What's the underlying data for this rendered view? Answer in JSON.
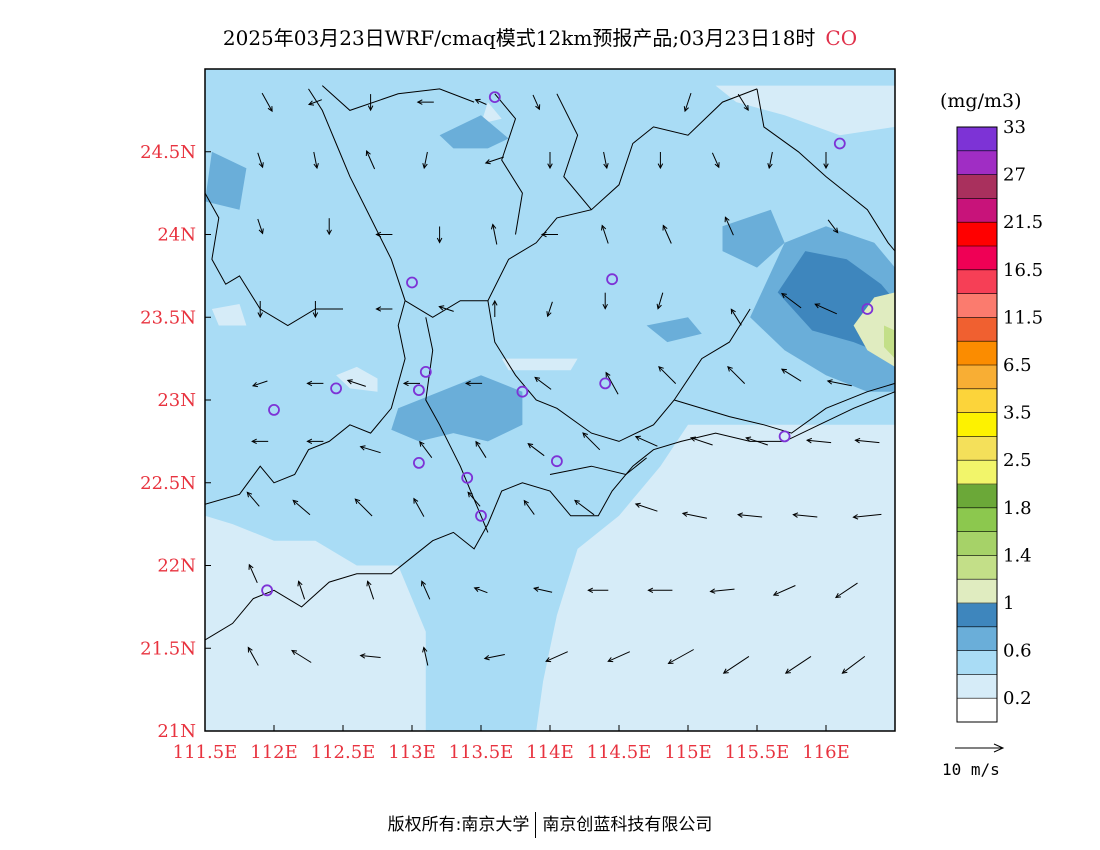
{
  "title": {
    "text": "2025年03月23日WRF/cmaq模式12km预报产品;03月23日18时",
    "species": "CO"
  },
  "colorbar": {
    "units": "(mg/m3)",
    "colors": [
      "#ffffff",
      "#d6ecf8",
      "#a9dcf5",
      "#6aaed9",
      "#3e86bd",
      "#e0ecc0",
      "#c3df88",
      "#a6d268",
      "#8cc84e",
      "#6ba838",
      "#f2f56a",
      "#f4e05a",
      "#fdf200",
      "#fcd43a",
      "#f8ae34",
      "#fb8c00",
      "#f06030",
      "#fb7b6e",
      "#f63f56",
      "#ef0055",
      "#ff0000",
      "#c8137a",
      "#a9305d",
      "#a02dc4",
      "#7d33d6"
    ],
    "labels": [
      {
        "text": "0.2",
        "boundary": 1
      },
      {
        "text": "0.6",
        "boundary": 3
      },
      {
        "text": "1",
        "boundary": 5
      },
      {
        "text": "1.4",
        "boundary": 7
      },
      {
        "text": "1.8",
        "boundary": 9
      },
      {
        "text": "2.5",
        "boundary": 11
      },
      {
        "text": "3.5",
        "boundary": 13
      },
      {
        "text": "6.5",
        "boundary": 15
      },
      {
        "text": "11.5",
        "boundary": 17
      },
      {
        "text": "16.5",
        "boundary": 19
      },
      {
        "text": "21.5",
        "boundary": 21
      },
      {
        "text": "27",
        "boundary": 23
      },
      {
        "text": "33",
        "boundary": 25
      }
    ]
  },
  "wind_reference": {
    "label": "10 m/s"
  },
  "footer": {
    "left": "版权所有:南京大学",
    "right": "南京创蓝科技有限公司"
  },
  "chart_data": {
    "type": "heatmap",
    "title": "2025年03月23日WRF/cmaq模式12km预报产品;03月23日18时 CO",
    "variable": "CO",
    "units": "mg/m3",
    "x_range": [
      111.5,
      116.5
    ],
    "y_range": [
      21.0,
      25.0
    ],
    "x_ticks": [
      {
        "value": 111.5,
        "label": "111.5E"
      },
      {
        "value": 112.0,
        "label": "112E"
      },
      {
        "value": 112.5,
        "label": "112.5E"
      },
      {
        "value": 113.0,
        "label": "113E"
      },
      {
        "value": 113.5,
        "label": "113.5E"
      },
      {
        "value": 114.0,
        "label": "114E"
      },
      {
        "value": 114.5,
        "label": "114.5E"
      },
      {
        "value": 115.0,
        "label": "115E"
      },
      {
        "value": 115.5,
        "label": "115.5E"
      },
      {
        "value": 116.0,
        "label": "116E"
      }
    ],
    "y_ticks": [
      {
        "value": 21.0,
        "label": "21N"
      },
      {
        "value": 21.5,
        "label": "21.5N"
      },
      {
        "value": 22.0,
        "label": "22N"
      },
      {
        "value": 22.5,
        "label": "22.5N"
      },
      {
        "value": 23.0,
        "label": "23N"
      },
      {
        "value": 23.5,
        "label": "23.5N"
      },
      {
        "value": 24.0,
        "label": "24N"
      },
      {
        "value": 24.5,
        "label": "24.5N"
      }
    ],
    "background_level": 2,
    "regions": [
      {
        "level": 1,
        "points": [
          [
            114.8,
            21.0
          ],
          [
            116.5,
            21.0
          ],
          [
            116.5,
            22.85
          ],
          [
            115.5,
            22.85
          ],
          [
            115.0,
            22.85
          ],
          [
            114.8,
            22.6
          ],
          [
            114.5,
            22.3
          ],
          [
            114.2,
            22.1
          ],
          [
            114.05,
            21.7
          ],
          [
            113.95,
            21.3
          ],
          [
            113.9,
            21.0
          ]
        ]
      },
      {
        "level": 1,
        "points": [
          [
            111.5,
            21.0
          ],
          [
            113.1,
            21.0
          ],
          [
            113.1,
            21.6
          ],
          [
            112.9,
            22.0
          ],
          [
            112.6,
            22.0
          ],
          [
            112.3,
            22.15
          ],
          [
            112.0,
            22.15
          ],
          [
            111.7,
            22.25
          ],
          [
            111.5,
            22.3
          ]
        ]
      },
      {
        "level": 1,
        "points": [
          [
            115.2,
            24.9
          ],
          [
            116.5,
            24.9
          ],
          [
            116.5,
            24.65
          ],
          [
            116.1,
            24.6
          ],
          [
            115.7,
            24.72
          ],
          [
            115.35,
            24.8
          ]
        ]
      },
      {
        "level": 1,
        "points": [
          [
            112.6,
            23.2
          ],
          [
            112.75,
            23.13
          ],
          [
            112.75,
            23.05
          ],
          [
            112.55,
            23.07
          ],
          [
            112.45,
            23.15
          ]
        ]
      },
      {
        "level": 1,
        "points": [
          [
            111.55,
            23.55
          ],
          [
            111.75,
            23.58
          ],
          [
            111.8,
            23.45
          ],
          [
            111.6,
            23.45
          ]
        ]
      },
      {
        "level": 1,
        "points": [
          [
            113.65,
            23.25
          ],
          [
            114.2,
            23.25
          ],
          [
            114.15,
            23.18
          ],
          [
            113.7,
            23.18
          ]
        ]
      },
      {
        "level": 1,
        "points": [
          [
            113.55,
            24.8
          ],
          [
            113.65,
            24.7
          ],
          [
            113.5,
            24.67
          ]
        ]
      },
      {
        "level": 3,
        "points": [
          [
            112.9,
            22.95
          ],
          [
            113.2,
            23.05
          ],
          [
            113.5,
            23.15
          ],
          [
            113.8,
            23.05
          ],
          [
            113.8,
            22.85
          ],
          [
            113.55,
            22.75
          ],
          [
            113.3,
            22.8
          ],
          [
            113.05,
            22.75
          ],
          [
            112.85,
            22.82
          ]
        ]
      },
      {
        "level": 3,
        "points": [
          [
            115.45,
            23.5
          ],
          [
            115.7,
            23.95
          ],
          [
            116.0,
            24.05
          ],
          [
            116.35,
            23.95
          ],
          [
            116.5,
            23.8
          ],
          [
            116.5,
            23.05
          ],
          [
            116.3,
            23.05
          ],
          [
            116.0,
            23.15
          ],
          [
            115.7,
            23.3
          ]
        ]
      },
      {
        "level": 3,
        "points": [
          [
            115.25,
            24.05
          ],
          [
            115.6,
            24.15
          ],
          [
            115.7,
            23.95
          ],
          [
            115.5,
            23.8
          ],
          [
            115.25,
            23.9
          ]
        ]
      },
      {
        "level": 3,
        "points": [
          [
            113.2,
            24.6
          ],
          [
            113.5,
            24.72
          ],
          [
            113.7,
            24.58
          ],
          [
            113.55,
            24.52
          ],
          [
            113.3,
            24.52
          ]
        ]
      },
      {
        "level": 3,
        "points": [
          [
            111.5,
            24.2
          ],
          [
            111.75,
            24.15
          ],
          [
            111.8,
            24.4
          ],
          [
            111.55,
            24.5
          ]
        ]
      },
      {
        "level": 3,
        "points": [
          [
            114.7,
            23.45
          ],
          [
            115.0,
            23.5
          ],
          [
            115.1,
            23.4
          ],
          [
            114.85,
            23.35
          ]
        ]
      },
      {
        "level": 4,
        "points": [
          [
            115.65,
            23.65
          ],
          [
            115.85,
            23.9
          ],
          [
            116.15,
            23.85
          ],
          [
            116.4,
            23.7
          ],
          [
            116.5,
            23.6
          ],
          [
            116.5,
            23.25
          ],
          [
            116.2,
            23.35
          ],
          [
            115.9,
            23.42
          ]
        ]
      },
      {
        "level": 5,
        "points": [
          [
            116.35,
            23.62
          ],
          [
            116.5,
            23.65
          ],
          [
            116.5,
            23.2
          ],
          [
            116.3,
            23.3
          ],
          [
            116.2,
            23.45
          ]
        ]
      },
      {
        "level": 6,
        "points": [
          [
            116.42,
            23.45
          ],
          [
            116.5,
            23.42
          ],
          [
            116.5,
            23.25
          ],
          [
            116.42,
            23.32
          ]
        ]
      }
    ],
    "stations": [
      [
        113.6,
        24.83
      ],
      [
        116.1,
        24.55
      ],
      [
        113.0,
        23.71
      ],
      [
        114.45,
        23.73
      ],
      [
        116.3,
        23.55
      ],
      [
        113.1,
        23.17
      ],
      [
        112.45,
        23.07
      ],
      [
        113.05,
        23.06
      ],
      [
        113.8,
        23.05
      ],
      [
        114.4,
        23.1
      ],
      [
        112.0,
        22.94
      ],
      [
        113.05,
        22.62
      ],
      [
        113.4,
        22.53
      ],
      [
        114.05,
        22.63
      ],
      [
        115.7,
        22.78
      ],
      [
        113.5,
        22.3
      ],
      [
        111.95,
        21.85
      ]
    ],
    "wind_vectors": [
      [
        111.95,
        24.8,
        0.5,
        -0.9,
        0.5
      ],
      [
        112.3,
        24.8,
        -0.8,
        -0.3,
        0.4
      ],
      [
        112.7,
        24.8,
        0.0,
        -1.0,
        0.4
      ],
      [
        113.1,
        24.8,
        -1.0,
        0.0,
        0.4
      ],
      [
        113.5,
        24.8,
        -0.9,
        0.4,
        0.3
      ],
      [
        113.9,
        24.8,
        0.4,
        -0.9,
        0.4
      ],
      [
        115.0,
        24.8,
        -0.3,
        -0.9,
        0.5
      ],
      [
        115.4,
        24.8,
        0.5,
        -0.8,
        0.5
      ],
      [
        111.9,
        24.45,
        0.3,
        -0.9,
        0.4
      ],
      [
        112.3,
        24.45,
        0.2,
        -1.0,
        0.4
      ],
      [
        112.7,
        24.45,
        -0.4,
        0.9,
        0.5
      ],
      [
        113.1,
        24.45,
        -0.2,
        -1.0,
        0.4
      ],
      [
        113.6,
        24.45,
        -0.9,
        -0.3,
        0.5
      ],
      [
        114.0,
        24.45,
        0.0,
        -1.0,
        0.4
      ],
      [
        114.4,
        24.45,
        0.2,
        -1.0,
        0.4
      ],
      [
        114.8,
        24.45,
        0.0,
        -1.0,
        0.4
      ],
      [
        115.2,
        24.45,
        0.4,
        -0.9,
        0.4
      ],
      [
        115.6,
        24.45,
        -0.2,
        -1.0,
        0.4
      ],
      [
        116.0,
        24.45,
        0.0,
        -1.0,
        0.4
      ],
      [
        111.9,
        24.05,
        0.3,
        -0.9,
        0.4
      ],
      [
        112.4,
        24.05,
        0.0,
        -1.0,
        0.4
      ],
      [
        112.8,
        24.0,
        -1.0,
        0.0,
        0.4
      ],
      [
        113.2,
        24.0,
        0.0,
        -1.0,
        0.4
      ],
      [
        113.6,
        24.0,
        -0.2,
        1.0,
        0.5
      ],
      [
        114.0,
        24.0,
        -1.0,
        0.0,
        0.4
      ],
      [
        114.4,
        24.0,
        -0.3,
        0.9,
        0.5
      ],
      [
        114.85,
        24.0,
        -0.4,
        0.9,
        0.5
      ],
      [
        115.3,
        24.05,
        -0.4,
        0.9,
        0.5
      ],
      [
        116.05,
        24.05,
        0.6,
        -0.8,
        0.4
      ],
      [
        111.9,
        23.55,
        0.0,
        -1.0,
        0.4
      ],
      [
        112.3,
        23.55,
        0.0,
        -1.0,
        0.4
      ],
      [
        112.8,
        23.55,
        -1.0,
        0.0,
        0.4
      ],
      [
        113.25,
        23.55,
        -0.9,
        0.3,
        0.4
      ],
      [
        113.6,
        23.55,
        0.0,
        1.0,
        0.4
      ],
      [
        114.0,
        23.55,
        -0.3,
        -0.9,
        0.4
      ],
      [
        114.4,
        23.6,
        0.0,
        -1.0,
        0.4
      ],
      [
        114.8,
        23.6,
        -0.3,
        -1.0,
        0.4
      ],
      [
        115.35,
        23.5,
        -0.5,
        0.8,
        0.5
      ],
      [
        115.75,
        23.6,
        -0.8,
        0.6,
        0.6
      ],
      [
        116.0,
        23.55,
        -0.9,
        0.4,
        0.6
      ],
      [
        111.9,
        23.1,
        -0.9,
        -0.3,
        0.4
      ],
      [
        112.3,
        23.1,
        -1.0,
        0.0,
        0.4
      ],
      [
        112.6,
        23.1,
        -0.9,
        0.3,
        0.5
      ],
      [
        113.0,
        23.1,
        -1.0,
        0.0,
        0.4
      ],
      [
        113.45,
        23.1,
        -1.0,
        0.0,
        0.4
      ],
      [
        113.95,
        23.1,
        -0.8,
        0.6,
        0.5
      ],
      [
        114.45,
        23.1,
        -0.5,
        0.9,
        0.6
      ],
      [
        114.85,
        23.15,
        -0.7,
        0.7,
        0.6
      ],
      [
        115.35,
        23.15,
        -0.7,
        0.7,
        0.6
      ],
      [
        115.75,
        23.15,
        -0.8,
        0.5,
        0.6
      ],
      [
        116.1,
        23.1,
        -1.0,
        0.2,
        0.6
      ],
      [
        111.9,
        22.75,
        -1.0,
        0.0,
        0.4
      ],
      [
        112.3,
        22.75,
        -1.0,
        0.0,
        0.4
      ],
      [
        112.7,
        22.7,
        -1.0,
        0.3,
        0.5
      ],
      [
        113.1,
        22.7,
        -0.6,
        0.8,
        0.5
      ],
      [
        113.5,
        22.7,
        -0.5,
        0.8,
        0.5
      ],
      [
        113.9,
        22.7,
        -0.8,
        0.6,
        0.5
      ],
      [
        114.3,
        22.75,
        -0.7,
        0.7,
        0.6
      ],
      [
        114.7,
        22.75,
        -0.9,
        0.4,
        0.6
      ],
      [
        115.1,
        22.75,
        -0.9,
        0.3,
        0.6
      ],
      [
        115.5,
        22.75,
        -0.9,
        0.3,
        0.6
      ],
      [
        115.95,
        22.75,
        -1.0,
        0.1,
        0.6
      ],
      [
        116.3,
        22.75,
        -1.0,
        0.1,
        0.6
      ],
      [
        111.85,
        22.4,
        -0.6,
        0.7,
        0.5
      ],
      [
        112.2,
        22.35,
        -0.7,
        0.6,
        0.6
      ],
      [
        112.65,
        22.35,
        -0.7,
        0.7,
        0.6
      ],
      [
        113.05,
        22.35,
        -0.5,
        0.9,
        0.5
      ],
      [
        113.45,
        22.4,
        -0.6,
        0.7,
        0.5
      ],
      [
        113.85,
        22.35,
        -0.5,
        0.7,
        0.5
      ],
      [
        114.25,
        22.35,
        -0.8,
        0.6,
        0.6
      ],
      [
        114.7,
        22.35,
        -0.9,
        0.3,
        0.6
      ],
      [
        115.05,
        22.3,
        -1.0,
        0.2,
        0.6
      ],
      [
        115.45,
        22.3,
        -1.0,
        0.1,
        0.6
      ],
      [
        115.85,
        22.3,
        -1.0,
        0.1,
        0.6
      ],
      [
        116.3,
        22.3,
        -1.0,
        -0.1,
        0.7
      ],
      [
        111.85,
        21.95,
        -0.4,
        0.9,
        0.5
      ],
      [
        112.2,
        21.85,
        -0.3,
        0.9,
        0.5
      ],
      [
        112.7,
        21.85,
        -0.3,
        0.9,
        0.5
      ],
      [
        113.1,
        21.85,
        -0.4,
        0.9,
        0.5
      ],
      [
        113.5,
        21.85,
        -0.8,
        0.3,
        0.4
      ],
      [
        113.95,
        21.85,
        -0.9,
        0.2,
        0.5
      ],
      [
        114.35,
        21.85,
        -1.0,
        0.0,
        0.5
      ],
      [
        114.8,
        21.85,
        -1.0,
        0.0,
        0.6
      ],
      [
        115.25,
        21.85,
        -1.0,
        -0.1,
        0.6
      ],
      [
        115.7,
        21.85,
        -0.9,
        -0.4,
        0.6
      ],
      [
        116.15,
        21.85,
        -0.9,
        -0.6,
        0.6
      ],
      [
        111.85,
        21.45,
        -0.5,
        0.9,
        0.5
      ],
      [
        112.2,
        21.45,
        -0.8,
        0.5,
        0.6
      ],
      [
        112.7,
        21.45,
        -1.0,
        0.1,
        0.5
      ],
      [
        113.1,
        21.45,
        -0.2,
        0.9,
        0.5
      ],
      [
        113.6,
        21.45,
        -1.0,
        -0.2,
        0.5
      ],
      [
        114.05,
        21.45,
        -0.9,
        -0.4,
        0.6
      ],
      [
        114.5,
        21.45,
        -0.9,
        -0.4,
        0.6
      ],
      [
        114.95,
        21.45,
        -0.9,
        -0.5,
        0.7
      ],
      [
        115.35,
        21.4,
        -0.9,
        -0.6,
        0.7
      ],
      [
        115.8,
        21.4,
        -0.9,
        -0.6,
        0.7
      ],
      [
        116.2,
        21.4,
        -0.8,
        -0.6,
        0.7
      ]
    ]
  }
}
